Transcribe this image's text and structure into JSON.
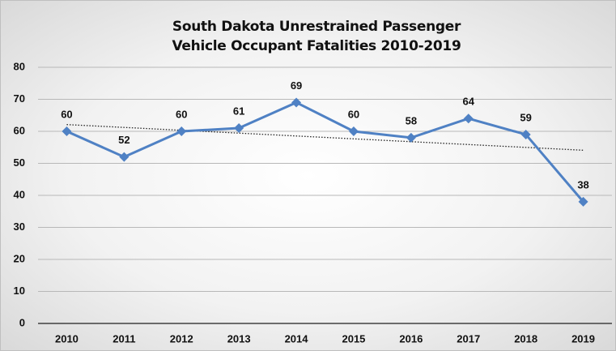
{
  "chart_data": {
    "type": "line",
    "title": "South Dakota Unrestrained Passenger Vehicle Occupant Fatalities 2010-2019",
    "categories": [
      "2010",
      "2011",
      "2012",
      "2013",
      "2014",
      "2015",
      "2016",
      "2017",
      "2018",
      "2019"
    ],
    "series": [
      {
        "name": "Fatalities",
        "color": "#4f81c4",
        "values": [
          60,
          52,
          60,
          61,
          69,
          60,
          58,
          64,
          59,
          38
        ]
      }
    ],
    "ylim": [
      0,
      80
    ],
    "yticks": [
      0,
      10,
      20,
      30,
      40,
      50,
      60,
      70,
      80
    ],
    "grid": true,
    "trendline": "linear",
    "data_labels": true
  }
}
